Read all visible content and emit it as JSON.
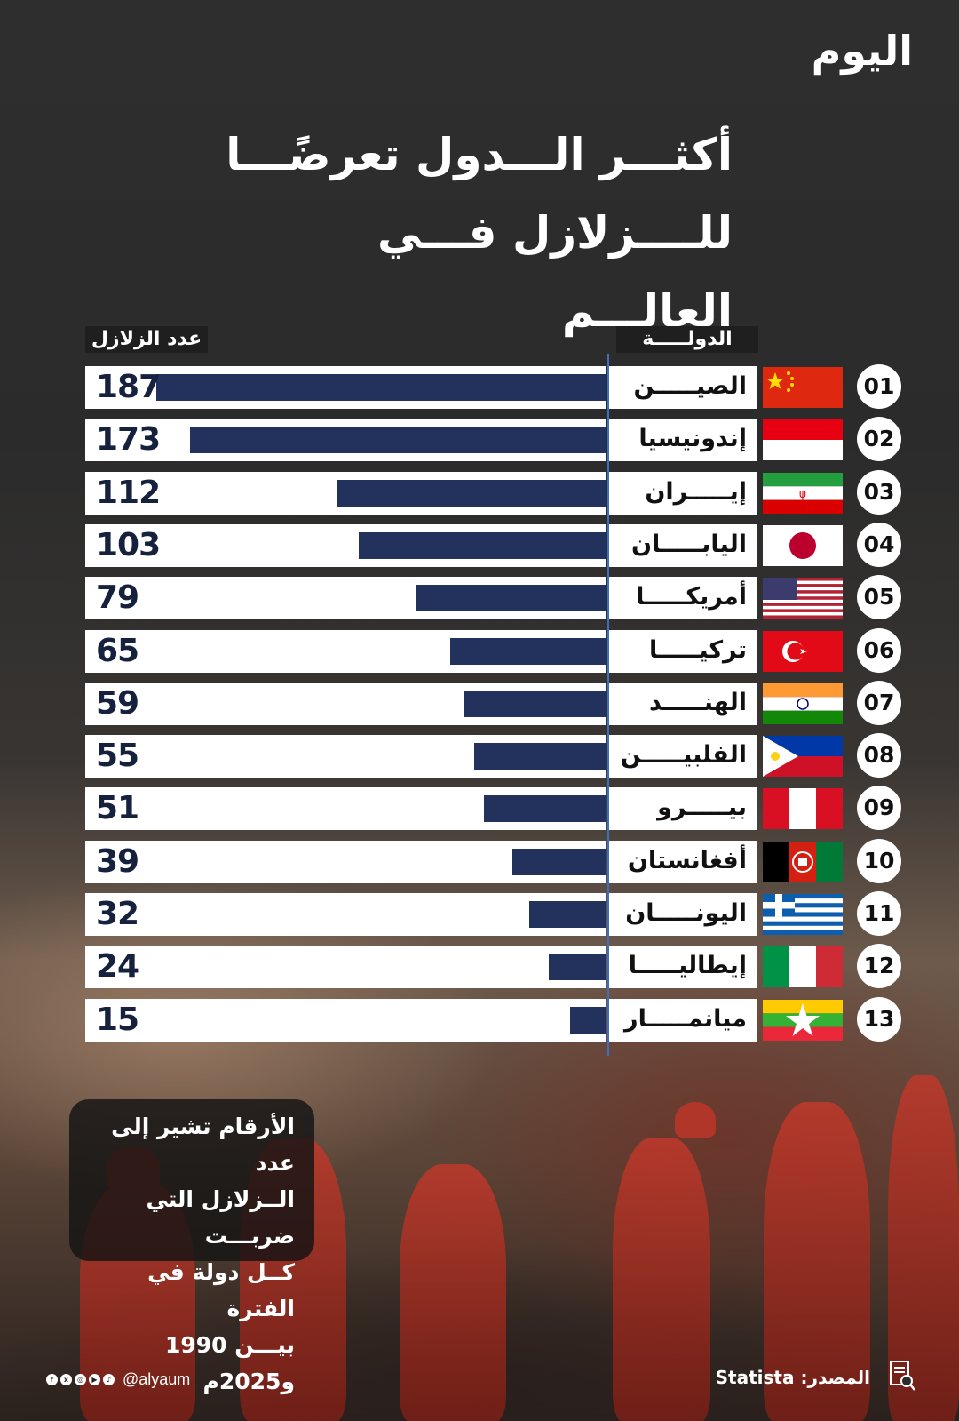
{
  "brand": {
    "logo": "اليوم",
    "handle": "@alyaum"
  },
  "title": {
    "line1": "أكثـــر الـــدول تعرضًـــا",
    "line2": "للــــزلازل فـــي العالـــم"
  },
  "headers": {
    "count": "عدد الزلازل",
    "country": "الدولـــــة"
  },
  "note": {
    "line1": "الأرقام تشير إلى عدد",
    "line2": "الــزلازل التي ضربـــت",
    "line3": "كــل دولة في الفترة",
    "line4": "بيـــن 1990 و2025م"
  },
  "source": "المصدر: Statista",
  "colors": {
    "bar": "#22325c",
    "axis": "#3b6fc2",
    "background": "#2b2b2b"
  },
  "chart_data": {
    "type": "bar",
    "orientation": "horizontal",
    "title": "أكثـــر الـــدول تعرضًـــا للــــزلازل فـــي العالـــم",
    "xlabel": "عدد الزلازل",
    "ylabel": "الدولـــــة",
    "ylim": [
      0,
      187
    ],
    "ranks": [
      "01",
      "02",
      "03",
      "04",
      "05",
      "06",
      "07",
      "08",
      "09",
      "10",
      "11",
      "12",
      "13"
    ],
    "categories": [
      "الصيـــــن",
      "إندونيسيا",
      "إيـــــران",
      "اليابـــــان",
      "أمريكـــــا",
      "تركيـــــا",
      "الهنـــــد",
      "الفلبيـــــن",
      "بيـــــرو",
      "أفغانستان",
      "اليونـــــان",
      "إيطاليـــــا",
      "ميانمـــــار"
    ],
    "values": [
      187,
      173,
      112,
      103,
      79,
      65,
      59,
      55,
      51,
      39,
      32,
      24,
      15
    ],
    "value_labels": [
      "187",
      "173",
      "112",
      "103",
      "79",
      "65",
      "59",
      "55",
      "51",
      "39",
      "32",
      "24",
      "15"
    ],
    "flags": [
      "china",
      "indonesia",
      "iran",
      "japan",
      "usa",
      "turkey",
      "india",
      "philippines",
      "peru",
      "afghanistan",
      "greece",
      "italy",
      "myanmar"
    ]
  }
}
